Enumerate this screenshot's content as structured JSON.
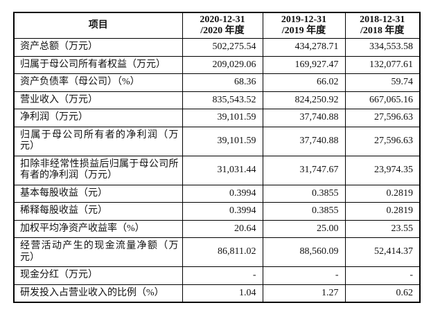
{
  "colors": {
    "background": "#ffffff",
    "border": "#000000",
    "text": "#111111"
  },
  "table": {
    "header": {
      "item_col": "项目",
      "periods": [
        {
          "line1": "2020-12-31",
          "line2": "/2020 年度"
        },
        {
          "line1": "2019-12-31",
          "line2": "/2019 年度"
        },
        {
          "line1": "2018-12-31",
          "line2": "/2018 年度"
        }
      ]
    },
    "rows": [
      {
        "label": "资产总额（万元）",
        "values": [
          "502,275.54",
          "434,278.71",
          "334,553.58"
        ]
      },
      {
        "label": "归属于母公司所有者权益（万元）",
        "values": [
          "209,029.06",
          "169,927.47",
          "132,077.61"
        ]
      },
      {
        "label": "资产负债率（母公司）（%）",
        "values": [
          "68.36",
          "66.02",
          "59.74"
        ]
      },
      {
        "label": "营业收入（万元）",
        "values": [
          "835,543.52",
          "824,250.92",
          "667,065.16"
        ]
      },
      {
        "label": "净利润（万元）",
        "values": [
          "39,101.59",
          "37,740.88",
          "27,596.63"
        ]
      },
      {
        "label": "归属于母公司所有者的净利润（万元）",
        "values": [
          "39,101.59",
          "37,740.88",
          "27,596.63"
        ]
      },
      {
        "label": "扣除非经常性损益后归属于母公司所有者的净利润（万元）",
        "values": [
          "31,031.44",
          "31,747.67",
          "23,974.35"
        ]
      },
      {
        "label": "基本每股收益（元）",
        "values": [
          "0.3994",
          "0.3855",
          "0.2819"
        ]
      },
      {
        "label": "稀释每股收益（元）",
        "values": [
          "0.3994",
          "0.3855",
          "0.2819"
        ]
      },
      {
        "label": "加权平均净资产收益率（%）",
        "values": [
          "20.64",
          "25.00",
          "23.55"
        ]
      },
      {
        "label": "经营活动产生的现金流量净额（万元）",
        "values": [
          "86,811.02",
          "88,560.09",
          "52,414.37"
        ]
      },
      {
        "label": "现金分红（万元）",
        "values": [
          "-",
          "-",
          "-"
        ]
      },
      {
        "label": "研发投入占营业收入的比例（%）",
        "values": [
          "1.04",
          "1.27",
          "0.62"
        ]
      }
    ]
  }
}
